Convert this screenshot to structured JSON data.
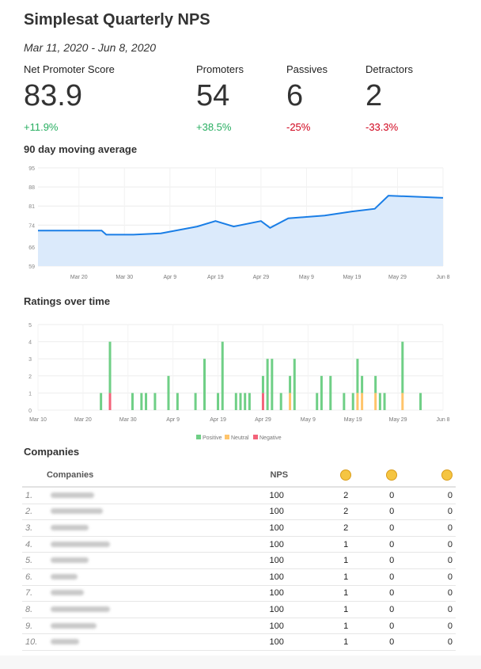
{
  "title": "Simplesat Quarterly NPS",
  "date_range": "Mar 11, 2020 - Jun 8, 2020",
  "metrics": [
    {
      "label": "Net Promoter Score",
      "value": "83.9",
      "change": "+11.9%",
      "trend": "up"
    },
    {
      "label": "Promoters",
      "value": "54",
      "change": "+38.5%",
      "trend": "up"
    },
    {
      "label": "Passives",
      "value": "6",
      "change": "-25%",
      "trend": "down"
    },
    {
      "label": "Detractors",
      "value": "2",
      "change": "-33.3%",
      "trend": "down"
    }
  ],
  "colors": {
    "positive": "#27ae60",
    "negative": "#d0021b",
    "line": "#1a7ee6",
    "area": "#dbeafb",
    "bar_positive": "#6fcf86",
    "bar_neutral": "#ffc46b",
    "bar_negative": "#f3637a"
  },
  "moving_average": {
    "title": "90 day moving average",
    "chart_data": {
      "type": "area",
      "title": "90 day moving average",
      "ylim": [
        59,
        95
      ],
      "yticks": [
        "59",
        "66",
        "74",
        "81",
        "88",
        "95"
      ],
      "xticks": [
        "Mar 20",
        "Mar 30",
        "Apr 9",
        "Apr 19",
        "Apr 29",
        "May 9",
        "May 19",
        "May 29",
        "Jun 8"
      ],
      "x": [
        "Mar 11",
        "Mar 25",
        "Mar 26",
        "Apr 1",
        "Apr 7",
        "Apr 15",
        "Apr 19",
        "Apr 23",
        "Apr 29",
        "May 1",
        "May 5",
        "May 9",
        "May 13",
        "May 19",
        "May 24",
        "May 27",
        "Jun 8"
      ],
      "y": [
        72.0,
        72.0,
        70.5,
        70.5,
        71.0,
        73.5,
        75.5,
        73.5,
        75.5,
        73.0,
        76.5,
        77.0,
        77.5,
        79.0,
        80.0,
        84.8,
        84.0
      ]
    }
  },
  "ratings": {
    "title": "Ratings over time",
    "chart_data": {
      "type": "bar",
      "title": "Ratings over time",
      "ylim": [
        0,
        5
      ],
      "yticks": [
        "0",
        "1",
        "2",
        "3",
        "4",
        "5"
      ],
      "xticks": [
        "Mar 10",
        "Mar 20",
        "Mar 30",
        "Apr 9",
        "Apr 19",
        "Apr 29",
        "May 9",
        "May 19",
        "May 29",
        "Jun 8"
      ],
      "legend": [
        "Positive",
        "Neutral",
        "Negative"
      ],
      "series_values": [
        {
          "day": "Mar 24",
          "positive": 1,
          "neutral": 0,
          "negative": 0
        },
        {
          "day": "Mar 26",
          "positive": 3,
          "neutral": 0,
          "negative": 1
        },
        {
          "day": "Mar 31",
          "positive": 1,
          "neutral": 0,
          "negative": 0
        },
        {
          "day": "Apr 2",
          "positive": 1,
          "neutral": 0,
          "negative": 0
        },
        {
          "day": "Apr 3",
          "positive": 1,
          "neutral": 0,
          "negative": 0
        },
        {
          "day": "Apr 5",
          "positive": 1,
          "neutral": 0,
          "negative": 0
        },
        {
          "day": "Apr 8",
          "positive": 2,
          "neutral": 0,
          "negative": 0
        },
        {
          "day": "Apr 10",
          "positive": 1,
          "neutral": 0,
          "negative": 0
        },
        {
          "day": "Apr 14",
          "positive": 1,
          "neutral": 0,
          "negative": 0
        },
        {
          "day": "Apr 16",
          "positive": 3,
          "neutral": 0,
          "negative": 0
        },
        {
          "day": "Apr 19",
          "positive": 1,
          "neutral": 0,
          "negative": 0
        },
        {
          "day": "Apr 20",
          "positive": 4,
          "neutral": 0,
          "negative": 0
        },
        {
          "day": "Apr 23",
          "positive": 1,
          "neutral": 0,
          "negative": 0
        },
        {
          "day": "Apr 24",
          "positive": 1,
          "neutral": 0,
          "negative": 0
        },
        {
          "day": "Apr 25",
          "positive": 1,
          "neutral": 0,
          "negative": 0
        },
        {
          "day": "Apr 26",
          "positive": 1,
          "neutral": 0,
          "negative": 0
        },
        {
          "day": "Apr 29",
          "positive": 1,
          "neutral": 0,
          "negative": 1
        },
        {
          "day": "Apr 30",
          "positive": 3,
          "neutral": 0,
          "negative": 0
        },
        {
          "day": "May 1",
          "positive": 3,
          "neutral": 0,
          "negative": 0
        },
        {
          "day": "May 3",
          "positive": 1,
          "neutral": 0,
          "negative": 0
        },
        {
          "day": "May 5",
          "positive": 1,
          "neutral": 1,
          "negative": 0
        },
        {
          "day": "May 6",
          "positive": 3,
          "neutral": 0,
          "negative": 0
        },
        {
          "day": "May 11",
          "positive": 1,
          "neutral": 0,
          "negative": 0
        },
        {
          "day": "May 12",
          "positive": 2,
          "neutral": 0,
          "negative": 0
        },
        {
          "day": "May 14",
          "positive": 2,
          "neutral": 0,
          "negative": 0
        },
        {
          "day": "May 17",
          "positive": 1,
          "neutral": 0,
          "negative": 0
        },
        {
          "day": "May 19",
          "positive": 1,
          "neutral": 0,
          "negative": 0
        },
        {
          "day": "May 20",
          "positive": 2,
          "neutral": 1,
          "negative": 0
        },
        {
          "day": "May 21",
          "positive": 1,
          "neutral": 1,
          "negative": 0
        },
        {
          "day": "May 24",
          "positive": 1,
          "neutral": 1,
          "negative": 0
        },
        {
          "day": "May 25",
          "positive": 1,
          "neutral": 0,
          "negative": 0
        },
        {
          "day": "May 26",
          "positive": 1,
          "neutral": 0,
          "negative": 0
        },
        {
          "day": "May 30",
          "positive": 3,
          "neutral": 1,
          "negative": 0
        },
        {
          "day": "Jun 3",
          "positive": 1,
          "neutral": 0,
          "negative": 0
        }
      ]
    }
  },
  "companies": {
    "title": "Companies",
    "headers": {
      "name": "Companies",
      "nps": "NPS",
      "happy": "happy-face",
      "neutral": "neutral-face",
      "sad": "sad-face"
    },
    "rows": [
      {
        "rank": "1.",
        "nps": "100",
        "positive": "2",
        "neutral": "0",
        "negative": "0"
      },
      {
        "rank": "2.",
        "nps": "100",
        "positive": "2",
        "neutral": "0",
        "negative": "0"
      },
      {
        "rank": "3.",
        "nps": "100",
        "positive": "2",
        "neutral": "0",
        "negative": "0"
      },
      {
        "rank": "4.",
        "nps": "100",
        "positive": "1",
        "neutral": "0",
        "negative": "0"
      },
      {
        "rank": "5.",
        "nps": "100",
        "positive": "1",
        "neutral": "0",
        "negative": "0"
      },
      {
        "rank": "6.",
        "nps": "100",
        "positive": "1",
        "neutral": "0",
        "negative": "0"
      },
      {
        "rank": "7.",
        "nps": "100",
        "positive": "1",
        "neutral": "0",
        "negative": "0"
      },
      {
        "rank": "8.",
        "nps": "100",
        "positive": "1",
        "neutral": "0",
        "negative": "0"
      },
      {
        "rank": "9.",
        "nps": "100",
        "positive": "1",
        "neutral": "0",
        "negative": "0"
      },
      {
        "rank": "10.",
        "nps": "100",
        "positive": "1",
        "neutral": "0",
        "negative": "0"
      }
    ]
  }
}
